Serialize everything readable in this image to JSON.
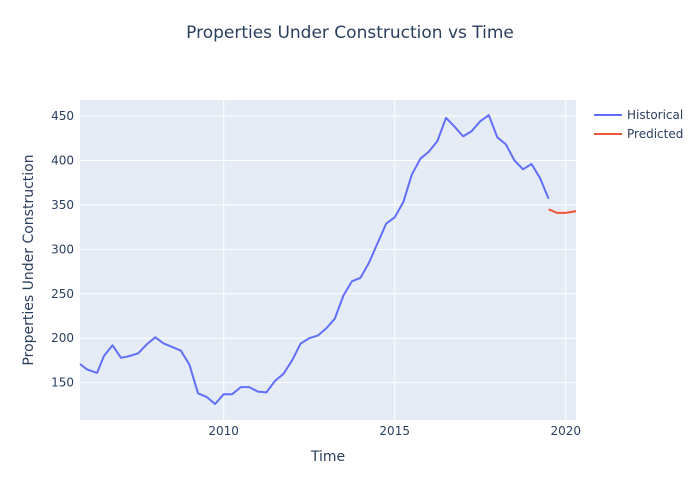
{
  "chart_data": {
    "type": "line",
    "title": "Properties Under Construction vs Time",
    "xlabel": "Time",
    "ylabel": "Properties Under Construction",
    "xlim": [
      2005.8,
      2020.3
    ],
    "ylim": [
      108,
      468
    ],
    "x_ticks": [
      {
        "value": 2010,
        "label": "2010"
      },
      {
        "value": 2015,
        "label": "2015"
      },
      {
        "value": 2020,
        "label": "2020"
      }
    ],
    "y_ticks": [
      {
        "value": 150,
        "label": "150"
      },
      {
        "value": 200,
        "label": "200"
      },
      {
        "value": 250,
        "label": "250"
      },
      {
        "value": 300,
        "label": "300"
      },
      {
        "value": 350,
        "label": "350"
      },
      {
        "value": 400,
        "label": "400"
      },
      {
        "value": 450,
        "label": "450"
      }
    ],
    "grid": true,
    "legend_position": "top-right",
    "plot_background": "#e5ecf6",
    "series": [
      {
        "name": "Historical",
        "color": "#636efa",
        "points": [
          [
            2005.8,
            171
          ],
          [
            2006.0,
            165
          ],
          [
            2006.3,
            161
          ],
          [
            2006.5,
            180
          ],
          [
            2006.75,
            192
          ],
          [
            2007.0,
            178
          ],
          [
            2007.25,
            180
          ],
          [
            2007.5,
            183
          ],
          [
            2007.75,
            193
          ],
          [
            2008.0,
            201
          ],
          [
            2008.25,
            194
          ],
          [
            2008.5,
            190
          ],
          [
            2008.75,
            186
          ],
          [
            2009.0,
            170
          ],
          [
            2009.25,
            138
          ],
          [
            2009.5,
            134
          ],
          [
            2009.75,
            126
          ],
          [
            2010.0,
            137
          ],
          [
            2010.25,
            137
          ],
          [
            2010.5,
            145
          ],
          [
            2010.75,
            145
          ],
          [
            2011.0,
            140
          ],
          [
            2011.25,
            139
          ],
          [
            2011.5,
            152
          ],
          [
            2011.75,
            160
          ],
          [
            2012.0,
            175
          ],
          [
            2012.25,
            194
          ],
          [
            2012.5,
            200
          ],
          [
            2012.75,
            203
          ],
          [
            2013.0,
            211
          ],
          [
            2013.25,
            222
          ],
          [
            2013.5,
            248
          ],
          [
            2013.75,
            264
          ],
          [
            2014.0,
            268
          ],
          [
            2014.25,
            285
          ],
          [
            2014.5,
            307
          ],
          [
            2014.75,
            329
          ],
          [
            2015.0,
            336
          ],
          [
            2015.25,
            353
          ],
          [
            2015.5,
            384
          ],
          [
            2015.75,
            402
          ],
          [
            2016.0,
            410
          ],
          [
            2016.25,
            422
          ],
          [
            2016.5,
            448
          ],
          [
            2016.75,
            438
          ],
          [
            2017.0,
            427
          ],
          [
            2017.25,
            433
          ],
          [
            2017.5,
            444
          ],
          [
            2017.75,
            451
          ],
          [
            2018.0,
            426
          ],
          [
            2018.25,
            418
          ],
          [
            2018.5,
            400
          ],
          [
            2018.75,
            390
          ],
          [
            2019.0,
            396
          ],
          [
            2019.25,
            380
          ],
          [
            2019.5,
            357
          ]
        ]
      },
      {
        "name": "Predicted",
        "color": "#ef553b",
        "points": [
          [
            2019.5,
            345
          ],
          [
            2019.75,
            341
          ],
          [
            2020.0,
            341
          ],
          [
            2020.3,
            343
          ]
        ]
      }
    ]
  }
}
